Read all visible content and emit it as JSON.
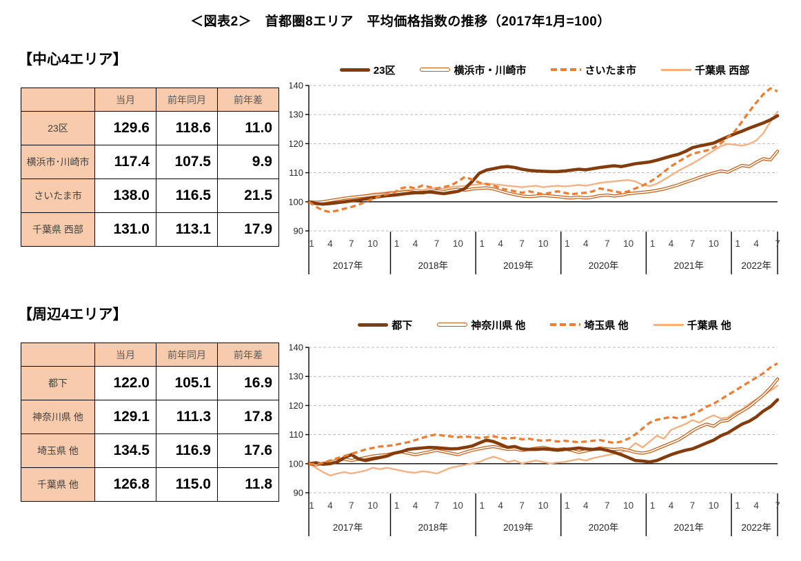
{
  "page_title": "＜図表2＞　首都圏8エリア　平均価格指数の推移（2017年1月=100）",
  "colors": {
    "table_fill": "#F8CBAD",
    "dark_brown": "#843C0C",
    "orange": "#C55A11",
    "bright_orange": "#ED7D31",
    "light_orange": "#F4B183",
    "gridline": "#BABABA",
    "axis": "#000000"
  },
  "sections": [
    {
      "heading": "【中心4エリア】",
      "table": {
        "col_headers": [
          "当月",
          "前年同月",
          "前年差"
        ],
        "rows": [
          {
            "label": "23区",
            "current": "129.6",
            "prev_year": "118.6",
            "diff": "11.0"
          },
          {
            "label": "横浜市･川崎市",
            "current": "117.4",
            "prev_year": "107.5",
            "diff": "9.9"
          },
          {
            "label": "さいたま市",
            "current": "138.0",
            "prev_year": "116.5",
            "diff": "21.5"
          },
          {
            "label": "千葉県 西部",
            "current": "131.0",
            "prev_year": "113.1",
            "diff": "17.9"
          }
        ]
      }
    },
    {
      "heading": "【周辺4エリア】",
      "table": {
        "col_headers": [
          "当月",
          "前年同月",
          "前年差"
        ],
        "rows": [
          {
            "label": "都下",
            "current": "122.0",
            "prev_year": "105.1",
            "diff": "16.9"
          },
          {
            "label": "神奈川県 他",
            "current": "129.1",
            "prev_year": "111.3",
            "diff": "17.8"
          },
          {
            "label": "埼玉県 他",
            "current": "134.5",
            "prev_year": "116.9",
            "diff": "17.6"
          },
          {
            "label": "千葉県 他",
            "current": "126.8",
            "prev_year": "115.0",
            "diff": "11.8"
          }
        ]
      }
    }
  ],
  "chart_data": [
    {
      "type": "line",
      "title": "中心4エリア 平均価格指数",
      "ylim": [
        90,
        140
      ],
      "yticks": [
        90,
        100,
        110,
        120,
        130,
        140
      ],
      "baseline": 100,
      "grid": "dashed-horizontal",
      "legend_position": "top",
      "x_month_ticks": [
        1,
        4,
        7,
        10
      ],
      "years": [
        "2017年",
        "2018年",
        "2019年",
        "2020年",
        "2021年",
        "2022年"
      ],
      "n_months": 67,
      "x_range_note": "2017年1月〜2022年7月 月次",
      "series": [
        {
          "name": "23区",
          "color": "#843C0C",
          "style": "thick",
          "values": [
            100.0,
            99.4,
            99.2,
            99.4,
            99.7,
            100.0,
            100.3,
            100.6,
            101.0,
            101.4,
            101.8,
            102.1,
            102.3,
            102.6,
            102.9,
            103.1,
            103.2,
            103.4,
            103.1,
            102.8,
            103.2,
            103.6,
            104.6,
            107.0,
            109.8,
            110.9,
            111.4,
            111.9,
            112.1,
            111.8,
            111.2,
            110.8,
            110.6,
            110.5,
            110.4,
            110.4,
            110.6,
            110.9,
            111.2,
            111.0,
            111.4,
            111.8,
            112.1,
            112.4,
            112.1,
            112.6,
            113.1,
            113.4,
            113.7,
            114.3,
            115.0,
            115.7,
            116.3,
            117.3,
            118.6,
            119.2,
            119.7,
            120.2,
            121.3,
            122.4,
            123.4,
            124.3,
            125.3,
            126.2,
            127.1,
            128.2,
            129.6
          ]
        },
        {
          "name": "横浜市・川崎市",
          "color": "#C55A11",
          "style": "double",
          "values": [
            100.0,
            99.8,
            100.0,
            100.4,
            100.8,
            101.2,
            101.5,
            101.8,
            102.0,
            102.3,
            102.5,
            102.8,
            103.0,
            103.3,
            103.5,
            103.2,
            103.0,
            103.5,
            103.8,
            103.5,
            104.0,
            104.3,
            104.0,
            104.4,
            104.6,
            104.8,
            104.4,
            103.7,
            103.0,
            102.5,
            102.0,
            101.8,
            102.0,
            102.2,
            102.0,
            101.8,
            101.5,
            101.3,
            101.6,
            101.3,
            101.6,
            102.1,
            102.3,
            102.0,
            102.3,
            102.8,
            103.0,
            103.3,
            103.5,
            103.9,
            104.4,
            105.1,
            105.8,
            106.7,
            107.5,
            108.4,
            109.2,
            109.9,
            110.6,
            110.2,
            111.4,
            112.5,
            112.1,
            113.6,
            114.8,
            114.4,
            117.4
          ]
        },
        {
          "name": "さいたま市",
          "color": "#ED7D31",
          "style": "dashed",
          "values": [
            100.0,
            98.3,
            97.0,
            96.5,
            97.0,
            97.6,
            98.2,
            99.0,
            100.0,
            101.0,
            102.0,
            102.6,
            103.2,
            104.6,
            105.2,
            104.6,
            105.6,
            105.1,
            104.6,
            105.1,
            105.6,
            107.0,
            108.6,
            107.6,
            106.6,
            106.1,
            105.6,
            104.6,
            104.1,
            103.6,
            103.1,
            103.6,
            103.1,
            102.6,
            103.1,
            103.6,
            103.1,
            102.6,
            102.9,
            103.1,
            103.6,
            104.6,
            104.1,
            103.6,
            103.1,
            103.6,
            104.6,
            105.6,
            106.8,
            108.4,
            110.3,
            112.2,
            113.7,
            115.2,
            116.5,
            117.1,
            117.6,
            118.6,
            120.1,
            122.2,
            124.3,
            127.6,
            131.0,
            134.1,
            137.0,
            139.0,
            138.0
          ]
        },
        {
          "name": "千葉県 西部",
          "color": "#F4B183",
          "style": "light",
          "values": [
            100.0,
            99.6,
            99.9,
            100.3,
            100.8,
            101.3,
            101.8,
            102.0,
            102.3,
            102.8,
            103.0,
            103.3,
            103.5,
            103.8,
            104.0,
            104.3,
            104.0,
            104.5,
            104.8,
            104.5,
            105.0,
            105.3,
            105.5,
            105.8,
            106.0,
            106.3,
            106.0,
            105.8,
            105.5,
            105.3,
            105.0,
            105.3,
            105.5,
            105.0,
            105.3,
            105.5,
            105.3,
            105.5,
            105.8,
            105.5,
            106.0,
            106.5,
            106.8,
            107.0,
            107.3,
            107.5,
            107.0,
            105.8,
            105.4,
            106.2,
            107.6,
            109.1,
            110.6,
            111.9,
            113.1,
            114.6,
            116.1,
            117.6,
            119.1,
            119.9,
            119.6,
            119.3,
            119.9,
            121.1,
            123.6,
            127.6,
            131.0
          ]
        }
      ]
    },
    {
      "type": "line",
      "title": "周辺4エリア 平均価格指数",
      "ylim": [
        90,
        140
      ],
      "yticks": [
        90,
        100,
        110,
        120,
        130,
        140
      ],
      "baseline": 100,
      "grid": "dashed-horizontal",
      "legend_position": "top",
      "x_month_ticks": [
        1,
        4,
        7,
        10
      ],
      "years": [
        "2017年",
        "2018年",
        "2019年",
        "2020年",
        "2021年",
        "2022年"
      ],
      "n_months": 67,
      "x_range_note": "2017年1月〜2022年7月 月次",
      "series": [
        {
          "name": "都下",
          "color": "#843C0C",
          "style": "thick",
          "values": [
            100.0,
            100.3,
            99.8,
            100.0,
            100.6,
            102.1,
            103.1,
            101.6,
            101.1,
            101.6,
            102.1,
            102.6,
            103.6,
            104.1,
            104.9,
            105.2,
            105.4,
            105.6,
            105.5,
            105.3,
            105.1,
            105.2,
            105.6,
            106.1,
            107.1,
            108.1,
            107.6,
            106.6,
            105.6,
            105.9,
            105.1,
            104.9,
            104.9,
            105.1,
            104.9,
            104.6,
            104.9,
            105.1,
            105.4,
            105.1,
            104.9,
            105.1,
            104.6,
            103.9,
            103.1,
            102.1,
            101.1,
            100.9,
            100.6,
            101.1,
            102.1,
            103.1,
            103.9,
            104.6,
            105.1,
            106.1,
            107.1,
            108.1,
            109.6,
            110.6,
            112.1,
            113.6,
            114.6,
            116.1,
            118.1,
            119.6,
            122.0
          ]
        },
        {
          "name": "神奈川県 他",
          "color": "#C55A11",
          "style": "double",
          "values": [
            100.0,
            99.6,
            100.1,
            100.6,
            101.1,
            101.6,
            101.1,
            101.6,
            102.1,
            102.6,
            102.9,
            103.1,
            103.6,
            104.1,
            103.6,
            103.1,
            103.6,
            104.1,
            104.6,
            104.1,
            103.6,
            103.1,
            103.9,
            104.6,
            105.1,
            105.6,
            105.9,
            105.4,
            104.9,
            105.1,
            104.6,
            104.9,
            105.3,
            105.6,
            105.1,
            104.9,
            105.1,
            104.6,
            103.9,
            104.4,
            104.9,
            105.4,
            105.1,
            104.9,
            105.1,
            104.6,
            103.9,
            103.6,
            104.1,
            105.1,
            106.1,
            107.1,
            108.1,
            109.6,
            111.3,
            112.6,
            113.6,
            112.9,
            114.6,
            114.9,
            116.6,
            118.1,
            119.6,
            121.6,
            123.6,
            126.1,
            129.1
          ]
        },
        {
          "name": "埼玉県 他",
          "color": "#ED7D31",
          "style": "dashed",
          "values": [
            100.0,
            99.8,
            100.3,
            101.1,
            101.9,
            102.6,
            103.4,
            104.1,
            104.9,
            105.4,
            105.9,
            106.1,
            106.4,
            106.9,
            107.4,
            108.1,
            108.9,
            109.6,
            110.1,
            109.6,
            109.4,
            109.1,
            109.4,
            109.1,
            108.9,
            109.1,
            109.4,
            108.9,
            108.6,
            108.9,
            108.4,
            108.6,
            108.1,
            107.9,
            108.1,
            107.6,
            107.9,
            107.6,
            107.4,
            107.6,
            107.9,
            108.1,
            107.6,
            107.1,
            107.6,
            108.6,
            110.1,
            112.1,
            114.1,
            115.1,
            115.6,
            116.1,
            115.6,
            116.1,
            116.9,
            118.1,
            119.6,
            120.6,
            122.1,
            123.6,
            125.1,
            126.6,
            128.1,
            129.6,
            131.1,
            133.1,
            134.5
          ]
        },
        {
          "name": "千葉県 他",
          "color": "#F4B183",
          "style": "light",
          "values": [
            100.0,
            98.6,
            97.1,
            95.9,
            96.6,
            97.1,
            96.6,
            97.1,
            97.6,
            98.6,
            98.1,
            98.6,
            98.1,
            97.6,
            97.1,
            96.9,
            97.4,
            97.1,
            96.6,
            97.6,
            98.6,
            99.1,
            99.6,
            100.1,
            100.6,
            101.6,
            102.4,
            101.6,
            100.6,
            101.1,
            100.1,
            100.6,
            101.1,
            100.6,
            100.1,
            100.4,
            100.6,
            101.1,
            101.6,
            101.1,
            101.9,
            102.4,
            102.9,
            103.4,
            103.9,
            104.9,
            107.1,
            105.6,
            107.6,
            109.6,
            108.6,
            111.6,
            112.6,
            113.6,
            115.0,
            114.1,
            115.6,
            116.6,
            115.6,
            115.9,
            117.6,
            118.6,
            120.6,
            122.1,
            123.6,
            125.1,
            126.8
          ]
        }
      ]
    }
  ]
}
